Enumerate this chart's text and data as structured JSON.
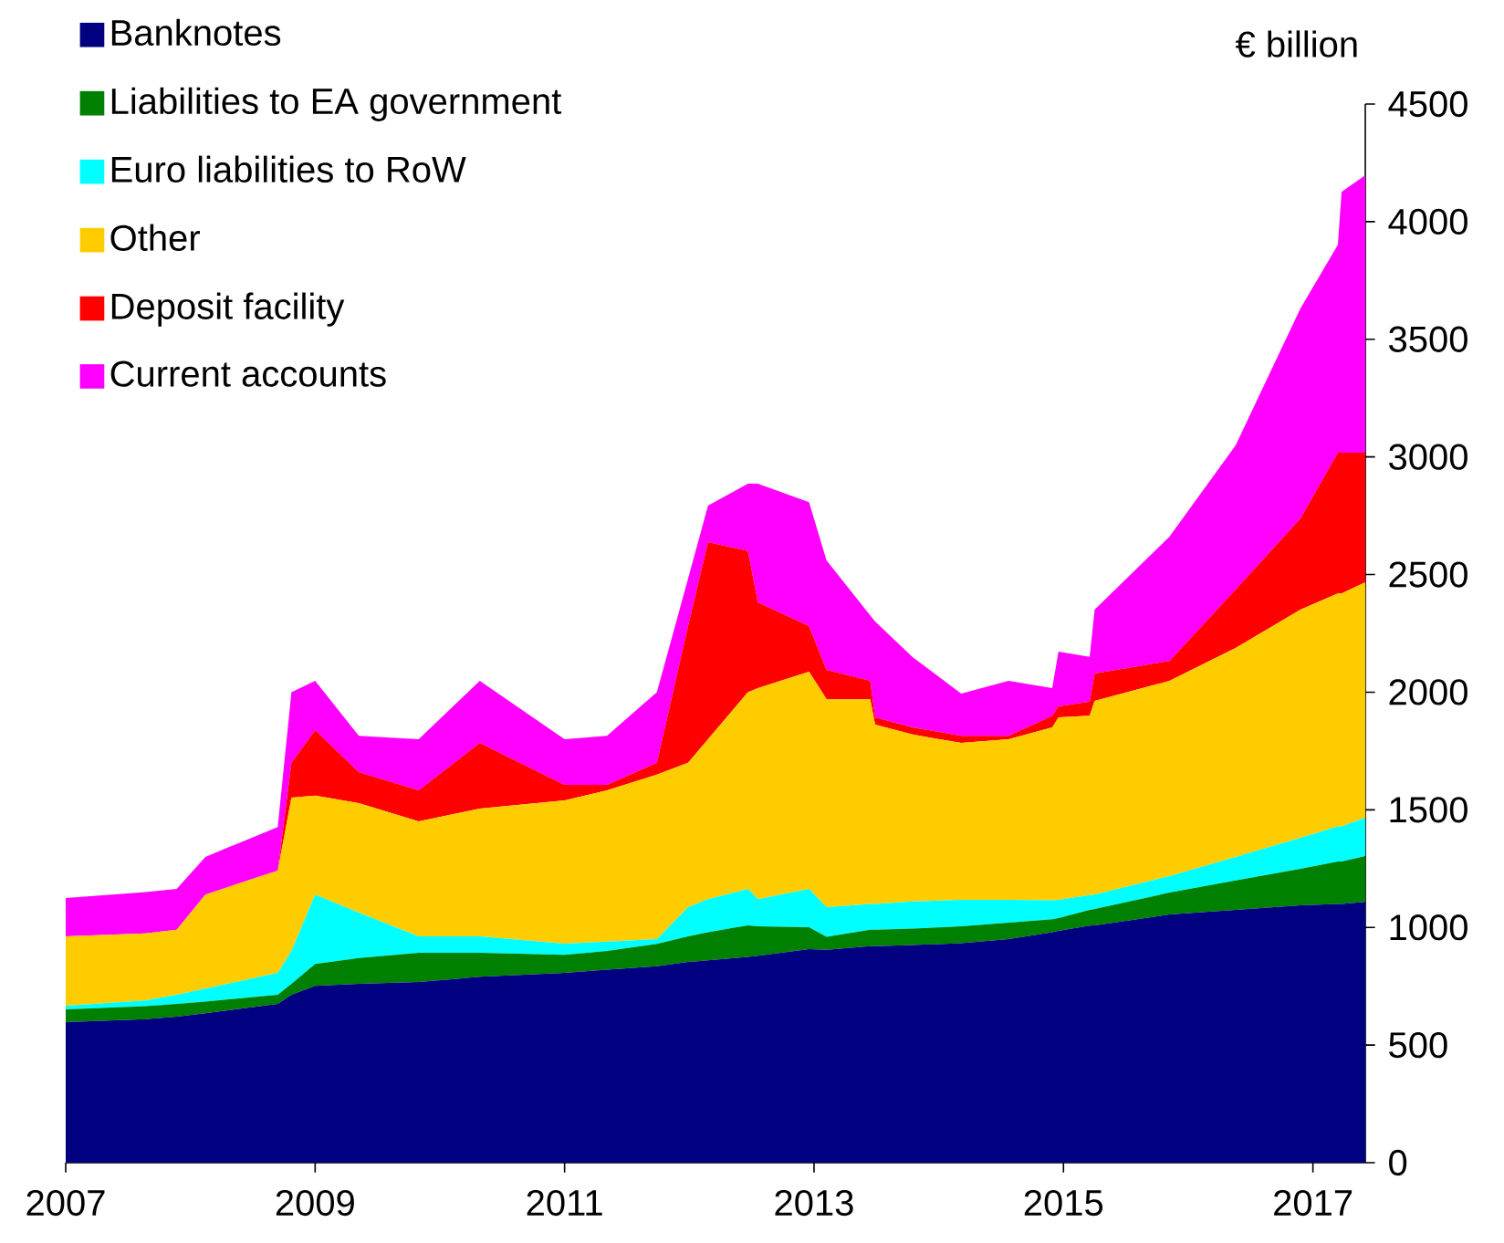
{
  "chart_data": {
    "type": "area",
    "stacked": true,
    "ylabel": "€ billion",
    "legend": "top left",
    "x": [
      2007.0,
      2007.64,
      2007.89,
      2008.12,
      2008.7,
      2008.81,
      2009.0,
      2009.35,
      2009.83,
      2010.32,
      2011.0,
      2011.34,
      2011.74,
      2011.99,
      2012.15,
      2012.47,
      2012.55,
      2012.96,
      2013.1,
      2013.45,
      2013.49,
      2013.79,
      2014.18,
      2014.56,
      2014.91,
      2014.96,
      2015.21,
      2015.25,
      2015.85,
      2016.38,
      2016.9,
      2017.2,
      2017.23,
      2017.42
    ],
    "series": [
      {
        "name": "Banknotes",
        "color": "#000080",
        "values": [
          597,
          610,
          621,
          635,
          675,
          714,
          752,
          760,
          768,
          790,
          807,
          820,
          835,
          853,
          860,
          875,
          880,
          908,
          905,
          920,
          920,
          925,
          933,
          950,
          980,
          985,
          1008,
          1009,
          1055,
          1075,
          1094,
          1100,
          1100,
          1109
        ]
      },
      {
        "name": "Liabilities to EA government",
        "color": "#008000",
        "values": [
          55,
          55,
          54,
          50,
          39,
          46,
          93,
          110,
          124,
          102,
          77,
          80,
          95,
          109,
          120,
          134,
          125,
          93,
          55,
          70,
          70,
          70,
          72,
          70,
          55,
          55,
          67,
          69,
          93,
          125,
          155,
          180,
          180,
          194
        ]
      },
      {
        "name": "Euro liabilities to RoW",
        "color": "#00ffff",
        "values": [
          15,
          25,
          39,
          55,
          93,
          140,
          295,
          193,
          70,
          70,
          47,
          40,
          20,
          124,
          140,
          155,
          115,
          163,
          126,
          110,
          110,
          115,
          112,
          97,
          80,
          77,
          63,
          62,
          70,
          100,
          132,
          150,
          150,
          163
        ]
      },
      {
        "name": "Other",
        "color": "#ffcc00",
        "values": [
          295,
          285,
          276,
          400,
          434,
          652,
          420,
          465,
          489,
          543,
          609,
          643,
          700,
          614,
          680,
          836,
          897,
          923,
          885,
          871,
          762,
          710,
          667,
          683,
          735,
          776,
          762,
          823,
          830,
          888,
          970,
          990,
          990,
          1001
        ]
      },
      {
        "name": "Deposit facility",
        "color": "#ff0000",
        "values": [
          0,
          0,
          0,
          0,
          0,
          148,
          279,
          132,
          132,
          279,
          66,
          23,
          50,
          581,
          838,
          600,
          365,
          194,
          124,
          77,
          31,
          30,
          31,
          15,
          50,
          47,
          60,
          116,
          85,
          248,
          388,
          598,
          598,
          551
        ]
      },
      {
        "name": "Current accounts",
        "color": "#ff00ff",
        "values": [
          163,
          175,
          174,
          160,
          186,
          300,
          209,
          155,
          217,
          264,
          194,
          209,
          300,
          202,
          155,
          286,
          504,
          527,
          465,
          279,
          407,
          299,
          179,
          233,
          117,
          232,
          190,
          272,
          528,
          613,
          892,
          884,
          1109,
          1179
        ]
      }
    ],
    "xlim": [
      2007,
      2017.42
    ],
    "xticks": [
      2007,
      2009,
      2011,
      2013,
      2015,
      2017
    ],
    "ylim": [
      0,
      4500
    ],
    "yticks": [
      0,
      500,
      1000,
      1500,
      2000,
      2500,
      3000,
      3500,
      4000,
      4500
    ]
  }
}
